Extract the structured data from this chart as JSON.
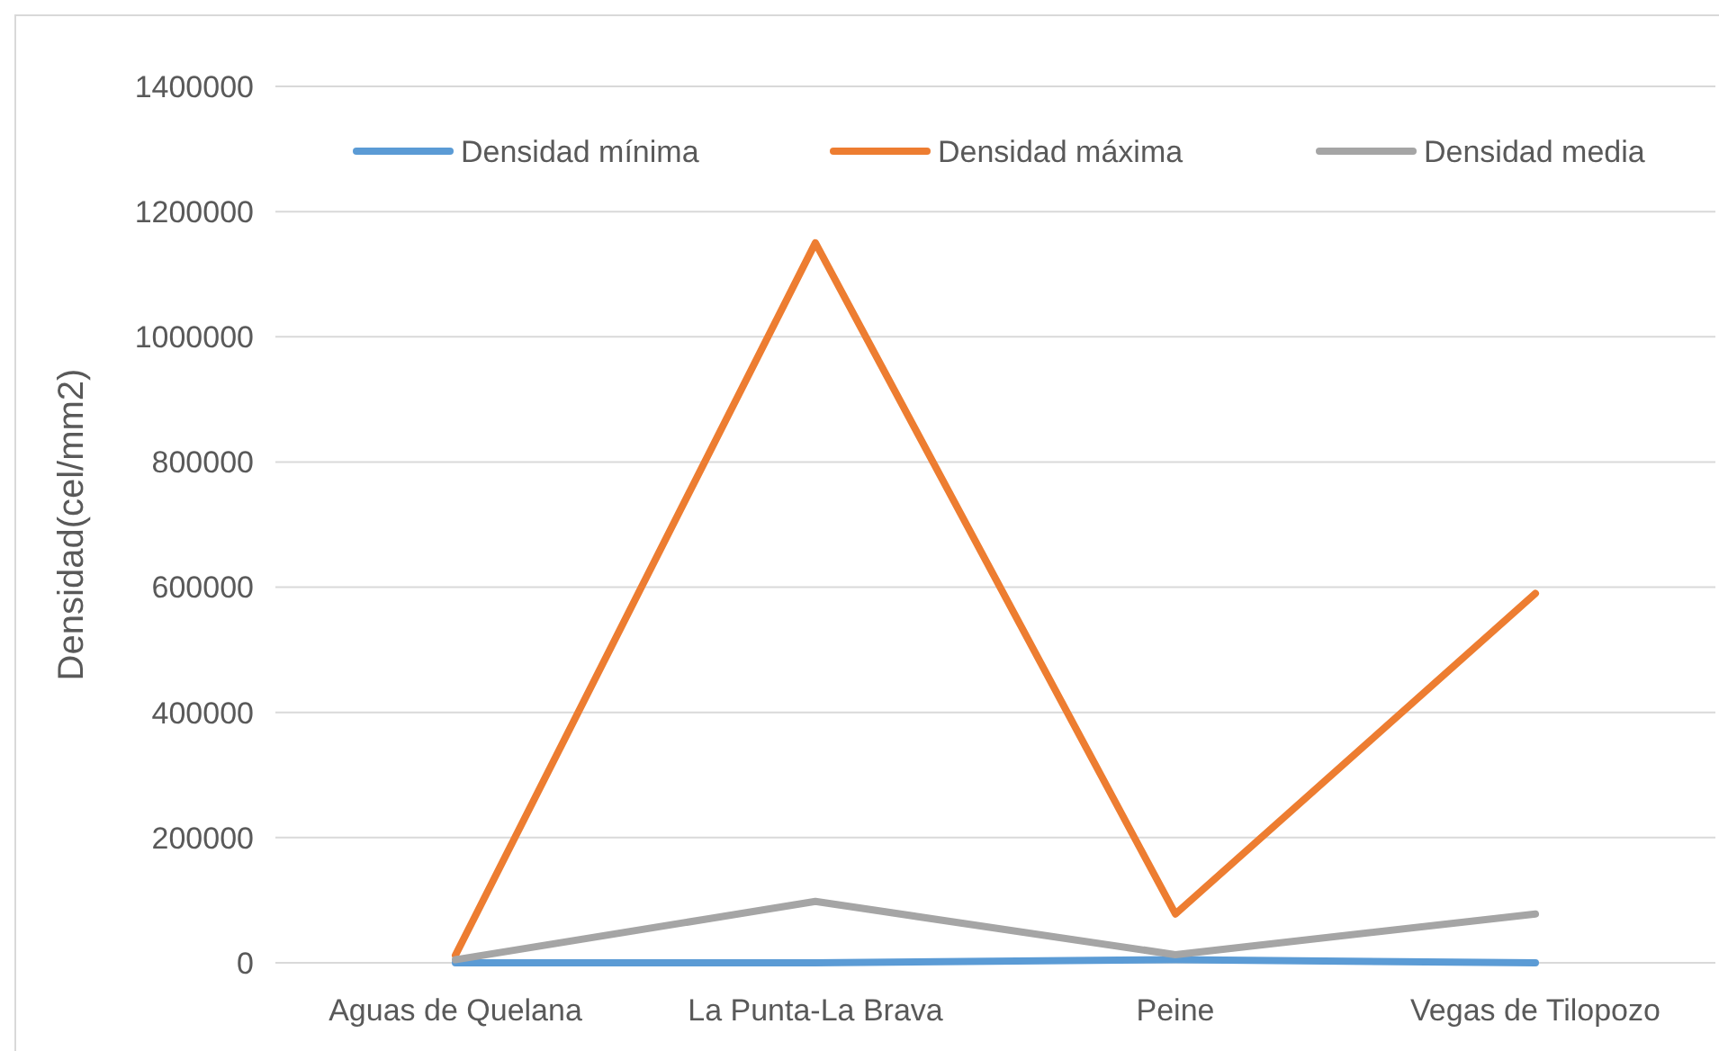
{
  "chart_data": {
    "type": "line",
    "ylabel": "Densidad(cel/mm2)",
    "categories": [
      "Aguas de Quelana",
      "La Punta-La Brava",
      "Peine",
      "Vegas de Tilopozo"
    ],
    "series": [
      {
        "name": "Densidad mínima",
        "color": "#5b9bd5",
        "values": [
          0,
          0,
          5000,
          0
        ]
      },
      {
        "name": "Densidad máxima",
        "color": "#ed7d31",
        "values": [
          12000,
          1150000,
          78000,
          590000
        ]
      },
      {
        "name": "Densidad media",
        "color": "#a5a5a5",
        "values": [
          5000,
          98000,
          13000,
          78000
        ]
      }
    ],
    "ylim": [
      0,
      1400000
    ],
    "yticks": [
      0,
      200000,
      400000,
      600000,
      800000,
      1000000,
      1200000,
      1400000
    ],
    "grid": "y",
    "legend": "top",
    "marker": "none",
    "line_style": "solid"
  }
}
